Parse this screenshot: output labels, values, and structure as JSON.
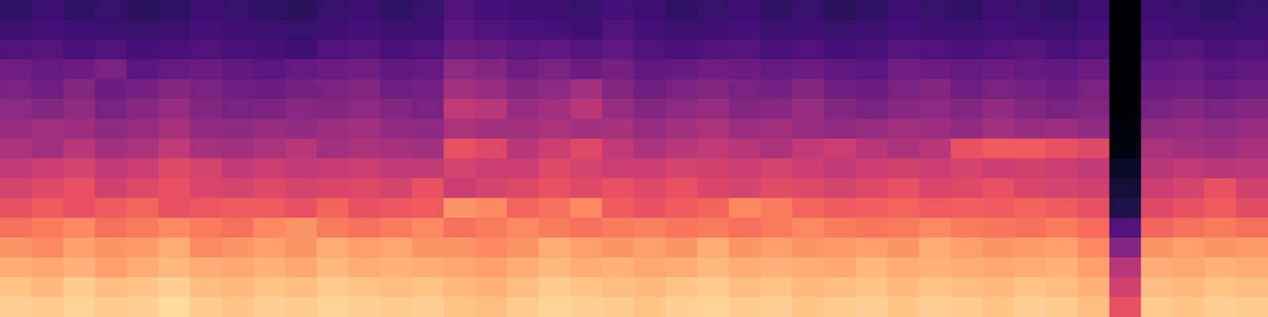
{
  "chart_data": {
    "type": "heatmap",
    "color": "magma",
    "tick_labels": false,
    "clim": [
      -80,
      0
    ],
    "values": [
      [
        -66,
        -64,
        -66,
        -65,
        -67,
        -66,
        -64,
        -65,
        -66,
        -67,
        -65,
        -64,
        -66,
        -65,
        -60,
        -62,
        -63,
        -64,
        -65,
        -62,
        -64,
        -66,
        -65,
        -64,
        -66,
        -65,
        -67,
        -66,
        -64,
        -65,
        -66,
        -64,
        -65,
        -66,
        -64,
        -80,
        -64,
        -65,
        -66,
        -65
      ],
      [
        -64,
        -62,
        -63,
        -64,
        -65,
        -64,
        -62,
        -63,
        -64,
        -65,
        -63,
        -62,
        -64,
        -63,
        -58,
        -60,
        -61,
        -62,
        -63,
        -60,
        -62,
        -64,
        -63,
        -62,
        -64,
        -63,
        -65,
        -64,
        -62,
        -63,
        -64,
        -62,
        -63,
        -64,
        -62,
        -80,
        -62,
        -63,
        -64,
        -63
      ],
      [
        -60,
        -59,
        -61,
        -60,
        -62,
        -61,
        -60,
        -61,
        -62,
        -63,
        -60,
        -59,
        -61,
        -60,
        -55,
        -56,
        -58,
        -57,
        -59,
        -57,
        -60,
        -61,
        -60,
        -59,
        -61,
        -60,
        -62,
        -61,
        -59,
        -60,
        -61,
        -60,
        -59,
        -61,
        -60,
        -80,
        -60,
        -59,
        -61,
        -60
      ],
      [
        -54,
        -56,
        -55,
        -52,
        -58,
        -56,
        -55,
        -57,
        -58,
        -56,
        -55,
        -54,
        -57,
        -56,
        -48,
        -50,
        -54,
        -52,
        -55,
        -53,
        -57,
        -56,
        -54,
        -55,
        -56,
        -55,
        -57,
        -58,
        -54,
        -55,
        -56,
        -55,
        -56,
        -57,
        -55,
        -80,
        -57,
        -56,
        -58,
        -57
      ],
      [
        -52,
        -54,
        -50,
        -55,
        -53,
        -50,
        -52,
        -54,
        -55,
        -53,
        -52,
        -50,
        -54,
        -53,
        -44,
        -46,
        -50,
        -48,
        -44,
        -50,
        -54,
        -52,
        -50,
        -52,
        -53,
        -50,
        -54,
        -55,
        -52,
        -50,
        -54,
        -52,
        -53,
        -55,
        -52,
        -80,
        -55,
        -54,
        -56,
        -54
      ],
      [
        -48,
        -50,
        -47,
        -52,
        -49,
        -46,
        -50,
        -52,
        -51,
        -49,
        -50,
        -48,
        -50,
        -52,
        -38,
        -40,
        -46,
        -44,
        -40,
        -46,
        -50,
        -48,
        -46,
        -50,
        -49,
        -46,
        -50,
        -52,
        -49,
        -48,
        -50,
        -47,
        -50,
        -52,
        -50,
        -80,
        -52,
        -50,
        -52,
        -50
      ],
      [
        -46,
        -44,
        -45,
        -48,
        -46,
        -43,
        -47,
        -48,
        -46,
        -47,
        -45,
        -44,
        -47,
        -48,
        -42,
        -44,
        -44,
        -42,
        -44,
        -43,
        -46,
        -44,
        -42,
        -45,
        -44,
        -46,
        -47,
        -46,
        -44,
        -45,
        -47,
        -44,
        -46,
        -45,
        -47,
        -78,
        -47,
        -46,
        -48,
        -46
      ],
      [
        -42,
        -44,
        -40,
        -44,
        -42,
        -38,
        -43,
        -44,
        -42,
        -40,
        -44,
        -42,
        -43,
        -44,
        -30,
        -32,
        -40,
        -36,
        -32,
        -38,
        -42,
        -40,
        -38,
        -40,
        -42,
        -38,
        -36,
        -40,
        -42,
        -40,
        -30,
        -28,
        -28,
        -30,
        -32,
        -78,
        -42,
        -44,
        -45,
        -43
      ],
      [
        -38,
        -36,
        -34,
        -38,
        -36,
        -32,
        -34,
        -38,
        -36,
        -38,
        -37,
        -36,
        -38,
        -38,
        -34,
        -36,
        -36,
        -32,
        -34,
        -36,
        -36,
        -34,
        -35,
        -36,
        -34,
        -36,
        -38,
        -36,
        -35,
        -36,
        -34,
        -36,
        -35,
        -36,
        -38,
        -75,
        -40,
        -38,
        -40,
        -39
      ],
      [
        -34,
        -32,
        -30,
        -35,
        -32,
        -30,
        -33,
        -34,
        -32,
        -34,
        -33,
        -32,
        -34,
        -30,
        -36,
        -34,
        -32,
        -30,
        -32,
        -30,
        -32,
        -30,
        -33,
        -34,
        -31,
        -32,
        -34,
        -32,
        -30,
        -33,
        -32,
        -30,
        -33,
        -34,
        -35,
        -72,
        -36,
        -34,
        -30,
        -35
      ],
      [
        -30,
        -28,
        -30,
        -28,
        -26,
        -30,
        -29,
        -28,
        -28,
        -30,
        -26,
        -30,
        -29,
        -28,
        -18,
        -20,
        -26,
        -24,
        -20,
        -28,
        -30,
        -28,
        -26,
        -20,
        -22,
        -26,
        -28,
        -27,
        -26,
        -28,
        -27,
        -28,
        -26,
        -28,
        -30,
        -70,
        -32,
        -30,
        -28,
        -31
      ],
      [
        -24,
        -22,
        -20,
        -24,
        -22,
        -20,
        -22,
        -24,
        -20,
        -18,
        -22,
        -24,
        -22,
        -20,
        -24,
        -22,
        -20,
        -22,
        -24,
        -22,
        -21,
        -23,
        -22,
        -24,
        -22,
        -20,
        -22,
        -23,
        -22,
        -20,
        -22,
        -23,
        -24,
        -22,
        -25,
        -60,
        -26,
        -24,
        -22,
        -24
      ],
      [
        -18,
        -20,
        -16,
        -18,
        -17,
        -14,
        -20,
        -18,
        -16,
        -18,
        -14,
        -16,
        -15,
        -18,
        -18,
        -20,
        -18,
        -14,
        -16,
        -18,
        -16,
        -18,
        -14,
        -18,
        -16,
        -18,
        -17,
        -16,
        -18,
        -14,
        -16,
        -18,
        -17,
        -16,
        -20,
        -50,
        -18,
        -16,
        -18,
        -17
      ],
      [
        -14,
        -15,
        -13,
        -16,
        -14,
        -12,
        -14,
        -15,
        -13,
        -15,
        -12,
        -14,
        -13,
        -14,
        -15,
        -16,
        -14,
        -12,
        -14,
        -13,
        -15,
        -14,
        -12,
        -14,
        -13,
        -14,
        -15,
        -12,
        -14,
        -13,
        -14,
        -15,
        -14,
        -13,
        -16,
        -40,
        -14,
        -15,
        -13,
        -14
      ],
      [
        -10,
        -12,
        -9,
        -11,
        -10,
        -8,
        -11,
        -12,
        -10,
        -11,
        -9,
        -10,
        -11,
        -10,
        -12,
        -13,
        -11,
        -9,
        -10,
        -11,
        -12,
        -10,
        -9,
        -11,
        -10,
        -12,
        -11,
        -10,
        -12,
        -10,
        -11,
        -12,
        -10,
        -11,
        -13,
        -35,
        -11,
        -12,
        -10,
        -11
      ],
      [
        -8,
        -9,
        -7,
        -9,
        -8,
        -6,
        -9,
        -10,
        -8,
        -9,
        -7,
        -8,
        -9,
        -8,
        -10,
        -11,
        -9,
        -7,
        -8,
        -9,
        -10,
        -8,
        -7,
        -9,
        -8,
        -10,
        -9,
        -8,
        -10,
        -8,
        -9,
        -10,
        -8,
        -9,
        -11,
        -30,
        -9,
        -10,
        -8,
        -9
      ]
    ]
  }
}
